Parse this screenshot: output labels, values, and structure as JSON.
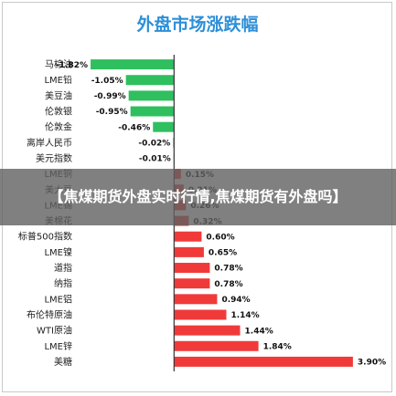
{
  "overlay": {
    "text": "【焦煤期货外盘实时行情,焦煤期货有外盘吗】"
  },
  "colors": {
    "positive": "#f03a3a",
    "negative": "#2fbf5f",
    "title": "#2d8fd8",
    "axis": "#333333"
  },
  "chart_data": {
    "type": "bar",
    "orientation": "horizontal",
    "title": "外盘市场涨跌幅",
    "categories": [
      "马棕油",
      "LME铅",
      "美豆油",
      "伦敦银",
      "伦敦金",
      "离岸人民币",
      "美元指数",
      "LME铜",
      "美大豆",
      "LME锡",
      "美棉花",
      "标普500指数",
      "LME镍",
      "道指",
      "纳指",
      "LME铝",
      "布伦特原油",
      "WTI原油",
      "LME锌",
      "美糖"
    ],
    "values": [
      -1.82,
      -1.05,
      -0.99,
      -0.95,
      -0.46,
      -0.02,
      -0.01,
      0.15,
      0.21,
      0.26,
      0.32,
      0.6,
      0.65,
      0.78,
      0.78,
      0.94,
      1.14,
      1.44,
      1.84,
      3.9
    ],
    "value_labels": [
      "-1.82%",
      "-1.05%",
      "-0.99%",
      "-0.95%",
      "-0.46%",
      "-0.02%",
      "-0.01%",
      "0.15%",
      "0.21%",
      "0.26%",
      "0.32%",
      "0.60%",
      "0.65%",
      "0.78%",
      "0.78%",
      "0.94%",
      "1.14%",
      "1.44%",
      "1.84%",
      "3.90%"
    ],
    "xlim": [
      -2.1,
      4.6
    ],
    "grid": false,
    "legend": "none"
  }
}
